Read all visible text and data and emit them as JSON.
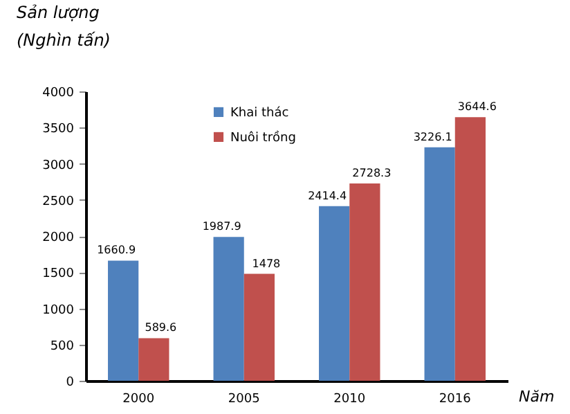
{
  "chart_data": {
    "type": "bar",
    "ylabel": "Sản lượng\n(Nghìn tấn)",
    "xlabel": "Năm",
    "categories": [
      "2000",
      "2005",
      "2010",
      "2016"
    ],
    "series": [
      {
        "name": "Khai thác",
        "color": "#4f81bd",
        "values": [
          1660.9,
          1987.9,
          2414.4,
          3226.1
        ]
      },
      {
        "name": "Nuôi trồng",
        "color": "#c0504d",
        "values": [
          589.6,
          1478,
          2728.3,
          3644.6
        ]
      }
    ],
    "ylim": [
      0,
      4000
    ],
    "yticks": [
      0,
      500,
      1000,
      1500,
      2000,
      2500,
      3000,
      3500,
      4000
    ],
    "data_labels": true,
    "grid": false,
    "legend": "top left"
  }
}
